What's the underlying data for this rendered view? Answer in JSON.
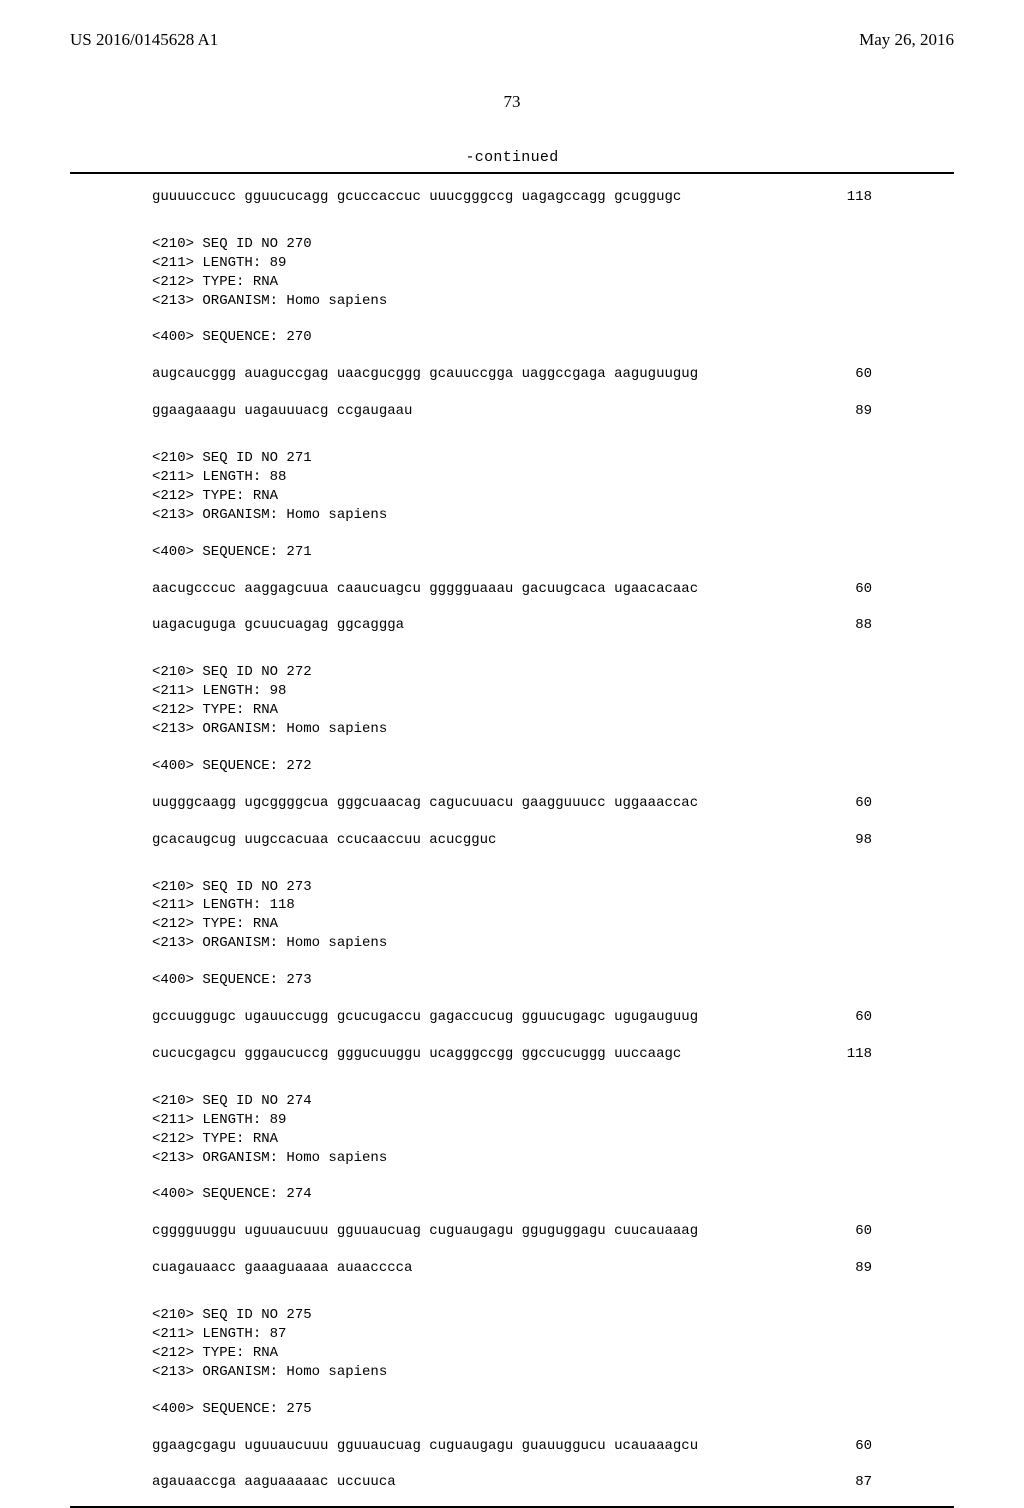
{
  "header": {
    "pubnum": "US 2016/0145628 A1",
    "pubdate": "May 26, 2016",
    "pagenum": "73",
    "continued": "-continued"
  },
  "blocks": [
    {
      "type": "seqline",
      "seq": "guuuuccucc gguucucagg gcuccaccuc uuucgggccg uagagccagg gcuggugc",
      "num": "118"
    },
    {
      "type": "gap-big"
    },
    {
      "type": "meta",
      "text": "<210> SEQ ID NO 270"
    },
    {
      "type": "meta",
      "text": "<211> LENGTH: 89"
    },
    {
      "type": "meta",
      "text": "<212> TYPE: RNA"
    },
    {
      "type": "meta",
      "text": "<213> ORGANISM: Homo sapiens"
    },
    {
      "type": "gap"
    },
    {
      "type": "meta",
      "text": "<400> SEQUENCE: 270"
    },
    {
      "type": "gap"
    },
    {
      "type": "seqline",
      "seq": "augcaucggg auaguccgag uaacgucggg gcauuccgga uaggccgaga aaguguugug",
      "num": "60"
    },
    {
      "type": "gap"
    },
    {
      "type": "seqline",
      "seq": "ggaagaaagu uagauuuacg ccgaugaau",
      "num": "89"
    },
    {
      "type": "gap-big"
    },
    {
      "type": "meta",
      "text": "<210> SEQ ID NO 271"
    },
    {
      "type": "meta",
      "text": "<211> LENGTH: 88"
    },
    {
      "type": "meta",
      "text": "<212> TYPE: RNA"
    },
    {
      "type": "meta",
      "text": "<213> ORGANISM: Homo sapiens"
    },
    {
      "type": "gap"
    },
    {
      "type": "meta",
      "text": "<400> SEQUENCE: 271"
    },
    {
      "type": "gap"
    },
    {
      "type": "seqline",
      "seq": "aacugcccuc aaggagcuua caaucuagcu ggggguaaau gacuugcaca ugaacacaac",
      "num": "60"
    },
    {
      "type": "gap"
    },
    {
      "type": "seqline",
      "seq": "uagacuguga gcuucuagag ggcaggga",
      "num": "88"
    },
    {
      "type": "gap-big"
    },
    {
      "type": "meta",
      "text": "<210> SEQ ID NO 272"
    },
    {
      "type": "meta",
      "text": "<211> LENGTH: 98"
    },
    {
      "type": "meta",
      "text": "<212> TYPE: RNA"
    },
    {
      "type": "meta",
      "text": "<213> ORGANISM: Homo sapiens"
    },
    {
      "type": "gap"
    },
    {
      "type": "meta",
      "text": "<400> SEQUENCE: 272"
    },
    {
      "type": "gap"
    },
    {
      "type": "seqline",
      "seq": "uugggcaagg ugcggggcua gggcuaacag cagucuuacu gaagguuucc uggaaaccac",
      "num": "60"
    },
    {
      "type": "gap"
    },
    {
      "type": "seqline",
      "seq": "gcacaugcug uugccacuaa ccucaaccuu acucgguc",
      "num": "98"
    },
    {
      "type": "gap-big"
    },
    {
      "type": "meta",
      "text": "<210> SEQ ID NO 273"
    },
    {
      "type": "meta",
      "text": "<211> LENGTH: 118"
    },
    {
      "type": "meta",
      "text": "<212> TYPE: RNA"
    },
    {
      "type": "meta",
      "text": "<213> ORGANISM: Homo sapiens"
    },
    {
      "type": "gap"
    },
    {
      "type": "meta",
      "text": "<400> SEQUENCE: 273"
    },
    {
      "type": "gap"
    },
    {
      "type": "seqline",
      "seq": "gccuuggugc ugauuccugg gcucugaccu gagaccucug gguucugagc ugugauguug",
      "num": "60"
    },
    {
      "type": "gap"
    },
    {
      "type": "seqline",
      "seq": "cucucgagcu gggaucuccg gggucuuggu ucagggccgg ggccucuggg uuccaagc",
      "num": "118"
    },
    {
      "type": "gap-big"
    },
    {
      "type": "meta",
      "text": "<210> SEQ ID NO 274"
    },
    {
      "type": "meta",
      "text": "<211> LENGTH: 89"
    },
    {
      "type": "meta",
      "text": "<212> TYPE: RNA"
    },
    {
      "type": "meta",
      "text": "<213> ORGANISM: Homo sapiens"
    },
    {
      "type": "gap"
    },
    {
      "type": "meta",
      "text": "<400> SEQUENCE: 274"
    },
    {
      "type": "gap"
    },
    {
      "type": "seqline",
      "seq": "cgggguuggu uguuaucuuu gguuaucuag cuguaugagu gguguggagu cuucauaaag",
      "num": "60"
    },
    {
      "type": "gap"
    },
    {
      "type": "seqline",
      "seq": "cuagauaacc gaaaguaaaa auaacccca",
      "num": "89"
    },
    {
      "type": "gap-big"
    },
    {
      "type": "meta",
      "text": "<210> SEQ ID NO 275"
    },
    {
      "type": "meta",
      "text": "<211> LENGTH: 87"
    },
    {
      "type": "meta",
      "text": "<212> TYPE: RNA"
    },
    {
      "type": "meta",
      "text": "<213> ORGANISM: Homo sapiens"
    },
    {
      "type": "gap"
    },
    {
      "type": "meta",
      "text": "<400> SEQUENCE: 275"
    },
    {
      "type": "gap"
    },
    {
      "type": "seqline",
      "seq": "ggaagcgagu uguuaucuuu gguuaucuag cuguaugagu guauuggucu ucauaaagcu",
      "num": "60"
    },
    {
      "type": "gap"
    },
    {
      "type": "seqline",
      "seq": "agauaaccga aaguaaaaac uccuuca",
      "num": "87"
    }
  ]
}
